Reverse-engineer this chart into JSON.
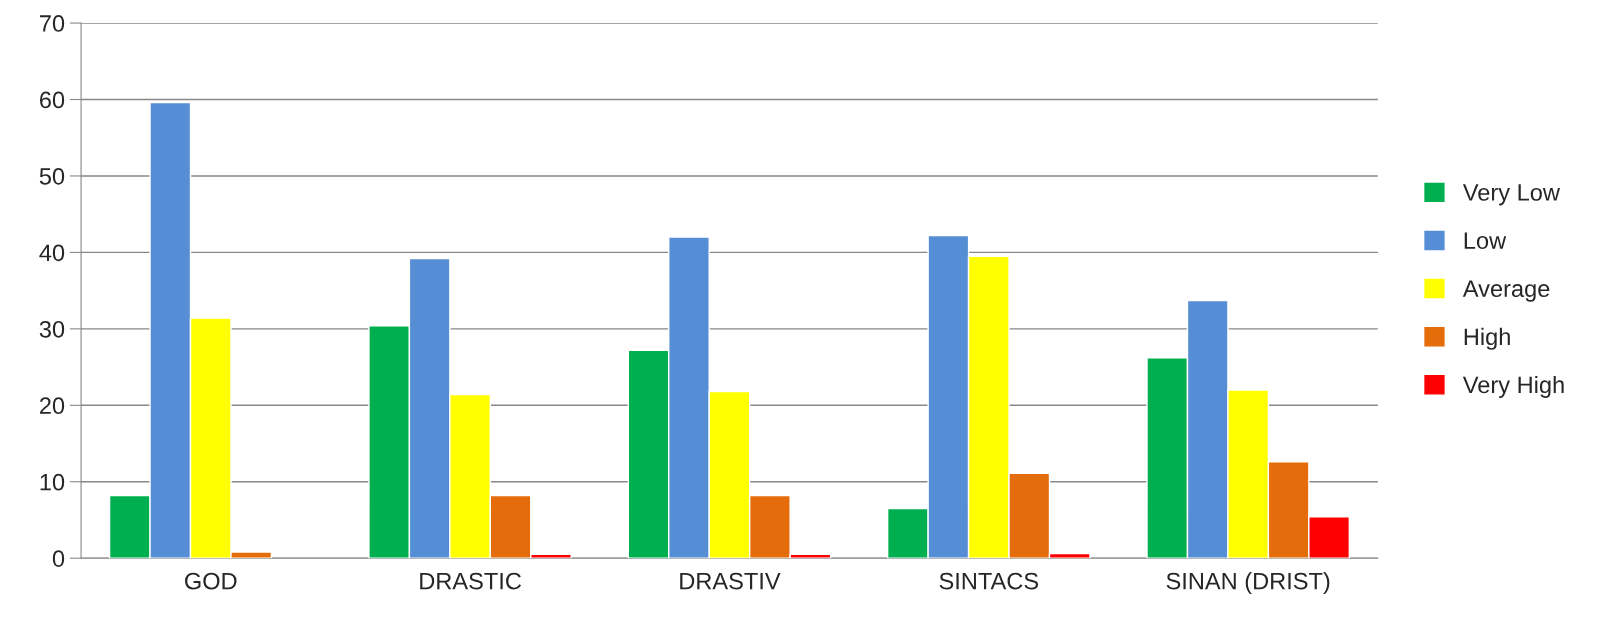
{
  "chart_data": {
    "type": "bar",
    "categories": [
      "GOD",
      "DRASTIC",
      "DRASTIV",
      "SINTACS",
      "SINAN (DRIST)"
    ],
    "series": [
      {
        "name": "Very Low",
        "color": "#00b050",
        "values": [
          8.2,
          30.4,
          27.2,
          6.5,
          26.2
        ]
      },
      {
        "name": "Low",
        "color": "#558ed5",
        "values": [
          59.6,
          39.2,
          42.0,
          42.2,
          33.7
        ]
      },
      {
        "name": "Average",
        "color": "#ffff00",
        "values": [
          31.4,
          21.4,
          21.8,
          39.5,
          22.0
        ]
      },
      {
        "name": "High",
        "color": "#e46c0a",
        "values": [
          0.8,
          8.2,
          8.2,
          11.1,
          12.6
        ]
      },
      {
        "name": "Very High",
        "color": "#ff0000",
        "values": [
          null,
          0.5,
          0.5,
          0.6,
          5.4
        ]
      }
    ],
    "ylim": [
      0,
      70
    ],
    "yticks": [
      0,
      10,
      20,
      30,
      40,
      50,
      60,
      70
    ],
    "grid": "y",
    "legend": "right"
  }
}
